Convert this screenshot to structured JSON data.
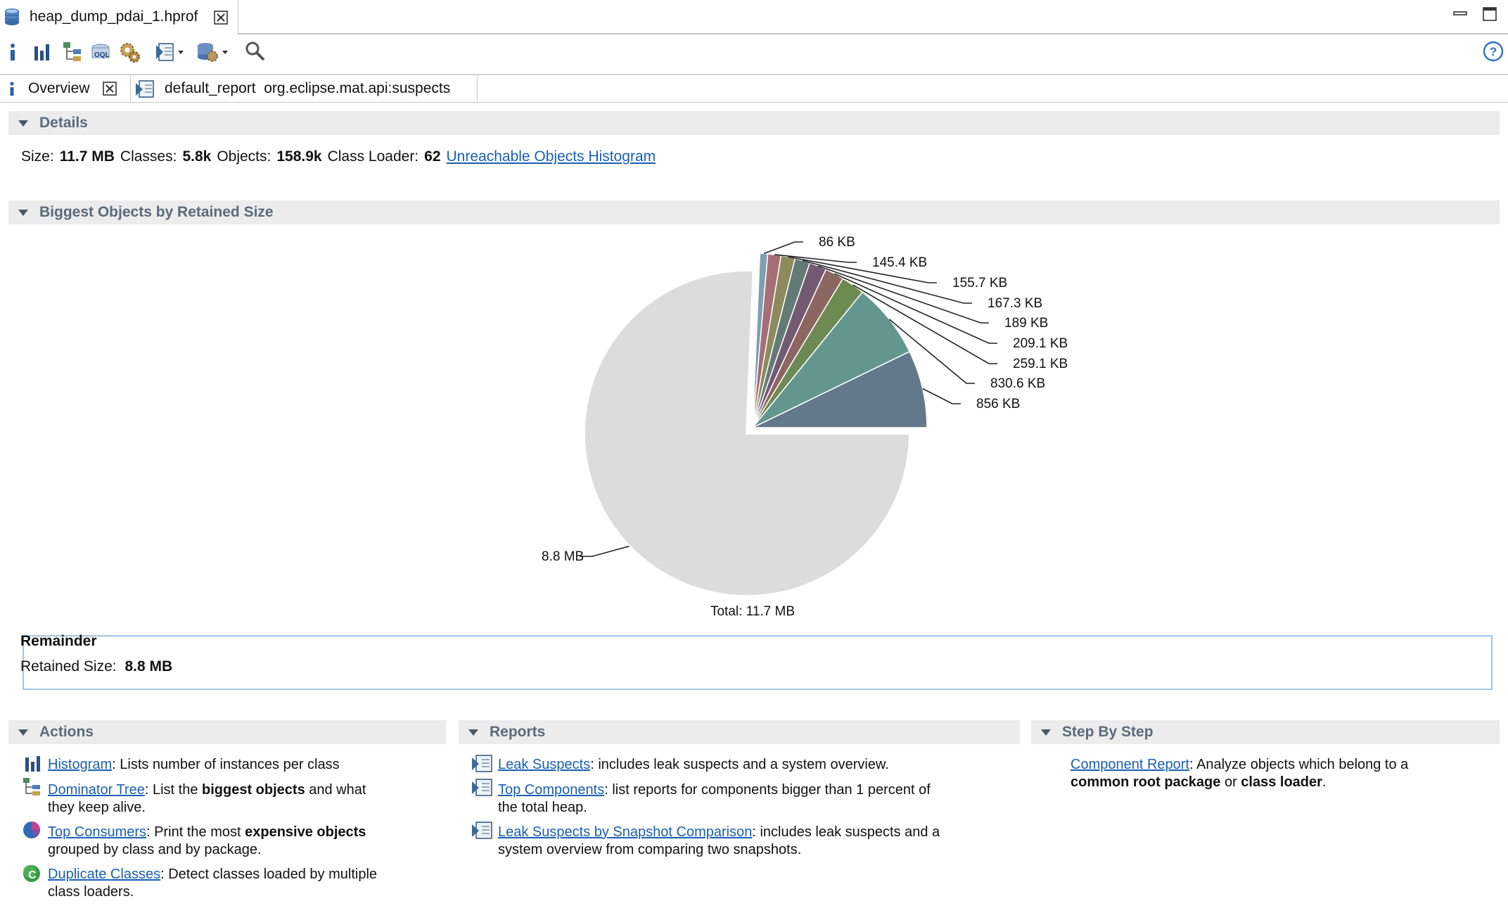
{
  "editor_tab": {
    "title": "heap_dump_pdai_1.hprof"
  },
  "inner_tabs": [
    {
      "label": "Overview"
    },
    {
      "label": "default_report  org.eclipse.mat.api:suspects"
    }
  ],
  "details": {
    "header": "Details",
    "size_label": "Size:",
    "size_value": "11.7 MB",
    "classes_label": "Classes:",
    "classes_value": "5.8k",
    "objects_label": "Objects:",
    "objects_value": "158.9k",
    "loader_label": "Class Loader:",
    "loader_value": "62",
    "histogram_link": "Unreachable Objects Histogram"
  },
  "biggest": {
    "header": "Biggest Objects by Retained Size",
    "total_label": "Total: 11.7 MB",
    "slice_labels": [
      "856 KB",
      "830.6 KB",
      "259.1 KB",
      "209.1 KB",
      "189 KB",
      "167.3 KB",
      "155.7 KB",
      "145.4 KB",
      "86 KB",
      "8.8 MB"
    ]
  },
  "chart_data": {
    "type": "pie",
    "title": "",
    "total": "Total: 11.7 MB",
    "labels": [
      "856 KB",
      "830.6 KB",
      "259.1 KB",
      "209.1 KB",
      "189 KB",
      "167.3 KB",
      "155.7 KB",
      "145.4 KB",
      "86 KB",
      "8.8 MB"
    ],
    "values_kb": [
      856,
      830.6,
      259.1,
      209.1,
      189,
      167.3,
      155.7,
      145.4,
      86,
      9011.2
    ],
    "colors": [
      "#61798a",
      "#63968f",
      "#6d8a53",
      "#8c6660",
      "#735a72",
      "#647a76",
      "#8c8a5e",
      "#a66f76",
      "#7e9fb0",
      "#dcdcdc"
    ],
    "exploded_first_n": 9
  },
  "remainder": {
    "title": "Remainder",
    "retained_label": "Retained Size:",
    "retained_value": "8.8 MB"
  },
  "actions": {
    "header": "Actions",
    "items": [
      {
        "link": "Histogram",
        "text1": ": Lists number of instances per class"
      },
      {
        "link": "Dominator Tree",
        "text1": ": List the ",
        "bold1": "biggest objects",
        "text2": " and what",
        "line2": "they keep alive."
      },
      {
        "link": "Top Consumers",
        "text1": ": Print the most ",
        "bold1": "expensive objects",
        "line2": "grouped by class and by package."
      },
      {
        "link": "Duplicate Classes",
        "text1": ": Detect classes loaded by multiple",
        "line2": "class loaders."
      }
    ]
  },
  "reports": {
    "header": "Reports",
    "items": [
      {
        "link": "Leak Suspects",
        "text1": ": includes leak suspects and a system overview."
      },
      {
        "link": "Top Components",
        "text1": ": list reports for components bigger than 1 percent of",
        "line2": "the total heap."
      },
      {
        "link": "Leak Suspects by Snapshot Comparison",
        "text1": ": includes leak suspects and a",
        "line2": "system overview from comparing two snapshots."
      }
    ]
  },
  "stepbystep": {
    "header": "Step By Step",
    "link": "Component Report",
    "text1": ": Analyze objects which belong to a",
    "bold1": "common root package",
    "mid": " or ",
    "bold2": "class loader",
    "end": "."
  }
}
